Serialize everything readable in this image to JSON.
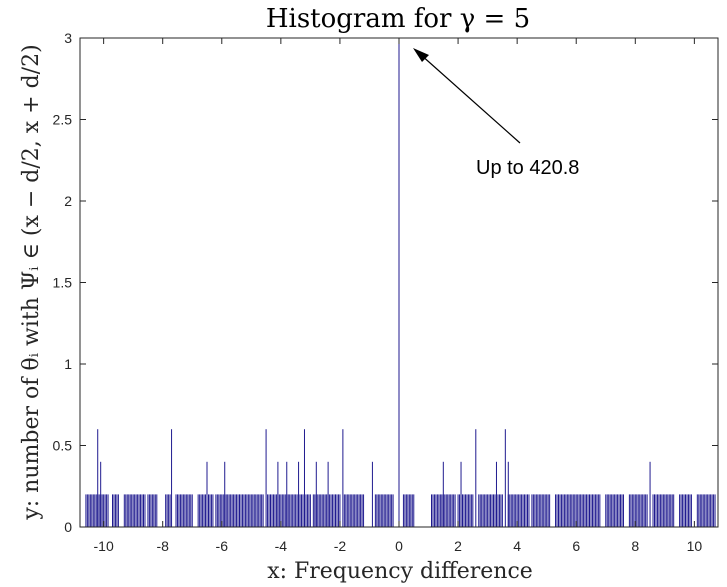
{
  "chart_data": {
    "type": "bar",
    "title": "Histogram for γ = 5",
    "xlabel": "x: Frequency difference",
    "ylabel": "y: number of θᵢ with Ψᵢ ∈ (x − d/2, x + d/2)",
    "xlim": [
      -10.8,
      10.8
    ],
    "ylim": [
      0,
      3
    ],
    "x_ticks": [
      -10,
      -8,
      -6,
      -4,
      -2,
      0,
      2,
      4,
      6,
      8,
      10
    ],
    "x_tick_labels": [
      "-10",
      "-8",
      "-6",
      "-4",
      "-2",
      "0",
      "2",
      "4",
      "6",
      "8",
      "10"
    ],
    "y_ticks": [
      0,
      0.5,
      1,
      1.5,
      2,
      2.5,
      3
    ],
    "y_tick_labels": [
      "0",
      "0.5",
      "1",
      "1.5",
      "2",
      "2.5",
      "3"
    ],
    "series_color": "#1f1a8f",
    "peak": {
      "x": 0,
      "value": 420.8,
      "displayed_value": 3
    },
    "annotation": {
      "text": "Up to 420.8",
      "points_to_x": 0,
      "points_to_y": 3
    },
    "bars_0_6": [
      -10.2,
      -7.7,
      -4.5,
      -3.2,
      -1.9,
      2.6,
      3.6
    ],
    "bars_0_4": [
      -10.1,
      -6.5,
      -5.9,
      -4.1,
      -3.8,
      -3.4,
      -2.8,
      -2.4,
      -0.9,
      1.5,
      2.1,
      3.3,
      3.7,
      8.5
    ],
    "bars_0_2_bins": [
      [
        -10.6,
        -10.0
      ],
      [
        -9.95,
        -9.85
      ],
      [
        -9.7,
        -9.5
      ],
      [
        -9.3,
        -8.6
      ],
      [
        -8.5,
        -8.2
      ],
      [
        -7.9,
        -7.75
      ],
      [
        -7.55,
        -7.0
      ],
      [
        -6.8,
        -6.3
      ],
      [
        -6.2,
        -4.6
      ],
      [
        -4.45,
        -3.0
      ],
      [
        -2.9,
        -2.0
      ],
      [
        -1.85,
        -1.2
      ],
      [
        -0.8,
        -0.2
      ],
      [
        0.15,
        0.5
      ],
      [
        1.1,
        1.9
      ],
      [
        2.0,
        2.5
      ],
      [
        2.7,
        3.5
      ],
      [
        3.7,
        4.4
      ],
      [
        4.5,
        5.1
      ],
      [
        5.3,
        6.8
      ],
      [
        7.0,
        7.6
      ],
      [
        7.8,
        8.4
      ],
      [
        8.6,
        9.3
      ],
      [
        9.5,
        9.9
      ],
      [
        10.1,
        10.7
      ]
    ],
    "bars_0_2_step": 0.05
  }
}
